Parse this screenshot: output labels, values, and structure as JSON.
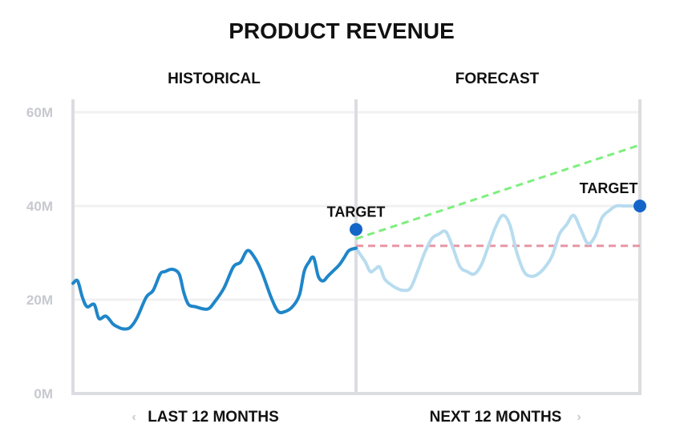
{
  "chart_data": {
    "type": "line",
    "title": "PRODUCT REVENUE",
    "sections": {
      "left": "HISTORICAL",
      "right": "FORECAST"
    },
    "nav": {
      "prev_chevron": "‹",
      "prev_label": "LAST 12 MONTHS",
      "next_label": "NEXT 12 MONTHS",
      "next_chevron": "›"
    },
    "y_ticks": [
      "0M",
      "20M",
      "40M",
      "60M"
    ],
    "y_tick_values": [
      0,
      20,
      40,
      60
    ],
    "ylim": [
      0,
      60
    ],
    "x_range": [
      -12,
      12
    ],
    "grid": true,
    "series": [
      {
        "key": "historical",
        "color": "#1f86c9",
        "x": [
          -12.0,
          -11.8,
          -11.6,
          -11.4,
          -11.1,
          -10.9,
          -10.6,
          -10.3,
          -10.1,
          -9.9,
          -9.6,
          -9.3,
          -8.9,
          -8.6,
          -8.3,
          -8.1,
          -7.8,
          -7.5,
          -7.3,
          -7.1,
          -6.8,
          -6.3,
          -6.0,
          -5.6,
          -5.2,
          -4.9,
          -4.6,
          -4.3,
          -4.0,
          -3.6,
          -3.3,
          -3.0,
          -2.7,
          -2.4,
          -2.2,
          -2.0,
          -1.8,
          -1.6,
          -1.4,
          -1.2,
          -1.0,
          -0.7,
          -0.5,
          -0.3,
          0.0
        ],
        "values": [
          23.5,
          24.0,
          20.5,
          18.5,
          19.0,
          16.0,
          16.5,
          14.8,
          14.2,
          13.8,
          14.0,
          16.0,
          20.5,
          22.0,
          25.5,
          26.0,
          26.5,
          25.5,
          21.5,
          19.0,
          18.5,
          18.0,
          19.5,
          22.5,
          27.0,
          28.0,
          30.5,
          29.0,
          26.0,
          20.5,
          17.5,
          17.5,
          18.5,
          21.0,
          26.0,
          28.0,
          29.0,
          25.0,
          24.0,
          25.0,
          26.0,
          27.5,
          29.0,
          30.5,
          31.0
        ]
      },
      {
        "key": "forecast",
        "color": "#b8dcef",
        "x": [
          0.0,
          0.2,
          0.4,
          0.6,
          0.8,
          1.0,
          1.2,
          1.4,
          1.7,
          2.0,
          2.3,
          2.6,
          2.9,
          3.2,
          3.5,
          3.8,
          4.1,
          4.4,
          4.7,
          5.0,
          5.3,
          5.6,
          5.9,
          6.2,
          6.5,
          6.8,
          7.1,
          7.4,
          7.7,
          8.0,
          8.3,
          8.6,
          8.9,
          9.2,
          9.5,
          9.8,
          10.1,
          10.4,
          10.7,
          11.0,
          11.3,
          11.6,
          12.0
        ],
        "values": [
          31.0,
          29.5,
          28.0,
          26.0,
          26.5,
          27.0,
          24.5,
          23.5,
          22.5,
          22.0,
          22.5,
          26.0,
          30.0,
          33.0,
          34.0,
          34.5,
          31.0,
          27.0,
          26.0,
          25.5,
          27.5,
          31.5,
          35.5,
          38.0,
          36.0,
          30.0,
          26.0,
          25.0,
          25.5,
          27.0,
          29.5,
          34.0,
          36.0,
          38.0,
          35.0,
          32.0,
          33.5,
          37.5,
          39.0,
          40.0,
          40.0,
          40.0,
          40.0
        ]
      },
      {
        "key": "optimistic-trend",
        "color": "#7def7d",
        "dashed": true,
        "x": [
          0,
          12
        ],
        "values": [
          33.0,
          53.0
        ]
      },
      {
        "key": "baseline",
        "color": "#e896a5",
        "dashed": true,
        "x": [
          0,
          12
        ],
        "values": [
          31.5,
          31.5
        ]
      }
    ],
    "targets": [
      {
        "label": "TARGET",
        "x": 0,
        "value": 35.0,
        "color": "#1565c9"
      },
      {
        "label": "TARGET",
        "x": 12,
        "value": 40.0,
        "color": "#1565c9"
      }
    ]
  }
}
